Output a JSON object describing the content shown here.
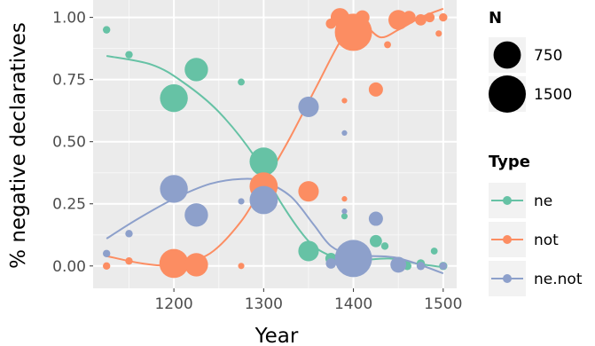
{
  "chart_data": {
    "type": "scatter",
    "xlabel": "Year",
    "ylabel": "% negative declaratives",
    "xlim": [
      1110,
      1515
    ],
    "ylim": [
      -0.09,
      1.07
    ],
    "x_ticks": [
      1200,
      1300,
      1400,
      1500
    ],
    "x_tick_labels": [
      "1200",
      "1300",
      "1400",
      "1500"
    ],
    "y_ticks": [
      0,
      0.25,
      0.5,
      0.75,
      1.0
    ],
    "y_tick_labels": [
      "0.00",
      "0.25",
      "0.50",
      "0.75",
      "1.00"
    ],
    "grid": true,
    "size_legend": {
      "title": "N",
      "entries": [
        {
          "label": "750",
          "value": 750
        },
        {
          "label": "1500",
          "value": 1500
        }
      ]
    },
    "series": [
      {
        "name": "ne",
        "color": "#66c2a5",
        "points": [
          {
            "x": 1125,
            "y": 0.95,
            "n": 20
          },
          {
            "x": 1150,
            "y": 0.85,
            "n": 20
          },
          {
            "x": 1200,
            "y": 0.675,
            "n": 780
          },
          {
            "x": 1225,
            "y": 0.79,
            "n": 520
          },
          {
            "x": 1275,
            "y": 0.74,
            "n": 15
          },
          {
            "x": 1300,
            "y": 0.42,
            "n": 800
          },
          {
            "x": 1350,
            "y": 0.06,
            "n": 380
          },
          {
            "x": 1375,
            "y": 0.03,
            "n": 80
          },
          {
            "x": 1390,
            "y": 0.2,
            "n": 10
          },
          {
            "x": 1400,
            "y": 0.01,
            "n": 60
          },
          {
            "x": 1425,
            "y": 0.1,
            "n": 100
          },
          {
            "x": 1435,
            "y": 0.08,
            "n": 20
          },
          {
            "x": 1450,
            "y": 0.01,
            "n": 50
          },
          {
            "x": 1460,
            "y": 0.0,
            "n": 30
          },
          {
            "x": 1475,
            "y": 0.01,
            "n": 30
          },
          {
            "x": 1490,
            "y": 0.06,
            "n": 15
          },
          {
            "x": 1500,
            "y": 0.0,
            "n": 30
          }
        ],
        "smooth": [
          [
            1125,
            0.845
          ],
          [
            1175,
            0.81
          ],
          [
            1210,
            0.74
          ],
          [
            1250,
            0.62
          ],
          [
            1290,
            0.44
          ],
          [
            1320,
            0.25
          ],
          [
            1350,
            0.1
          ],
          [
            1375,
            0.04
          ],
          [
            1400,
            0.022
          ],
          [
            1440,
            0.03
          ],
          [
            1470,
            0.01
          ],
          [
            1500,
            -0.005
          ]
        ]
      },
      {
        "name": "not",
        "color": "#fc8d62",
        "points": [
          {
            "x": 1125,
            "y": 0.0,
            "n": 20
          },
          {
            "x": 1150,
            "y": 0.02,
            "n": 20
          },
          {
            "x": 1200,
            "y": 0.01,
            "n": 860
          },
          {
            "x": 1225,
            "y": 0.005,
            "n": 520
          },
          {
            "x": 1275,
            "y": 0.0,
            "n": 10
          },
          {
            "x": 1300,
            "y": 0.32,
            "n": 800
          },
          {
            "x": 1350,
            "y": 0.3,
            "n": 380
          },
          {
            "x": 1375,
            "y": 0.975,
            "n": 60
          },
          {
            "x": 1385,
            "y": 1.0,
            "n": 300
          },
          {
            "x": 1390,
            "y": 0.665,
            "n": 5
          },
          {
            "x": 1390,
            "y": 0.27,
            "n": 5
          },
          {
            "x": 1400,
            "y": 0.94,
            "n": 1500
          },
          {
            "x": 1410,
            "y": 1.0,
            "n": 150
          },
          {
            "x": 1425,
            "y": 0.71,
            "n": 150
          },
          {
            "x": 1438,
            "y": 0.89,
            "n": 15
          },
          {
            "x": 1450,
            "y": 0.99,
            "n": 350
          },
          {
            "x": 1462,
            "y": 1.0,
            "n": 120
          },
          {
            "x": 1475,
            "y": 0.99,
            "n": 80
          },
          {
            "x": 1485,
            "y": 1.0,
            "n": 50
          },
          {
            "x": 1495,
            "y": 0.935,
            "n": 10
          },
          {
            "x": 1500,
            "y": 1.0,
            "n": 30
          }
        ],
        "smooth": [
          [
            1125,
            0.04
          ],
          [
            1165,
            0.01
          ],
          [
            1200,
            0.005
          ],
          [
            1240,
            0.05
          ],
          [
            1275,
            0.18
          ],
          [
            1300,
            0.33
          ],
          [
            1330,
            0.52
          ],
          [
            1360,
            0.73
          ],
          [
            1390,
            0.93
          ],
          [
            1410,
            0.97
          ],
          [
            1430,
            0.92
          ],
          [
            1450,
            0.95
          ],
          [
            1475,
            1.0
          ],
          [
            1500,
            1.035
          ]
        ]
      },
      {
        "name": "ne.not",
        "color": "#8da0cb",
        "points": [
          {
            "x": 1125,
            "y": 0.05,
            "n": 20
          },
          {
            "x": 1150,
            "y": 0.13,
            "n": 20
          },
          {
            "x": 1200,
            "y": 0.31,
            "n": 780
          },
          {
            "x": 1225,
            "y": 0.205,
            "n": 520
          },
          {
            "x": 1275,
            "y": 0.26,
            "n": 10
          },
          {
            "x": 1300,
            "y": 0.265,
            "n": 800
          },
          {
            "x": 1350,
            "y": 0.64,
            "n": 380
          },
          {
            "x": 1375,
            "y": 0.01,
            "n": 60
          },
          {
            "x": 1390,
            "y": 0.535,
            "n": 5
          },
          {
            "x": 1390,
            "y": 0.22,
            "n": 5
          },
          {
            "x": 1400,
            "y": 0.03,
            "n": 1500
          },
          {
            "x": 1425,
            "y": 0.19,
            "n": 150
          },
          {
            "x": 1450,
            "y": 0.005,
            "n": 200
          },
          {
            "x": 1475,
            "y": 0.0,
            "n": 30
          },
          {
            "x": 1500,
            "y": 0.0,
            "n": 20
          }
        ],
        "smooth": [
          [
            1125,
            0.11
          ],
          [
            1160,
            0.19
          ],
          [
            1200,
            0.27
          ],
          [
            1240,
            0.33
          ],
          [
            1275,
            0.35
          ],
          [
            1300,
            0.34
          ],
          [
            1330,
            0.28
          ],
          [
            1355,
            0.17
          ],
          [
            1375,
            0.08
          ],
          [
            1400,
            0.04
          ],
          [
            1420,
            0.04
          ],
          [
            1445,
            0.035
          ],
          [
            1470,
            0.01
          ],
          [
            1500,
            -0.03
          ]
        ]
      }
    ],
    "color_legend": {
      "title": "Type"
    }
  }
}
